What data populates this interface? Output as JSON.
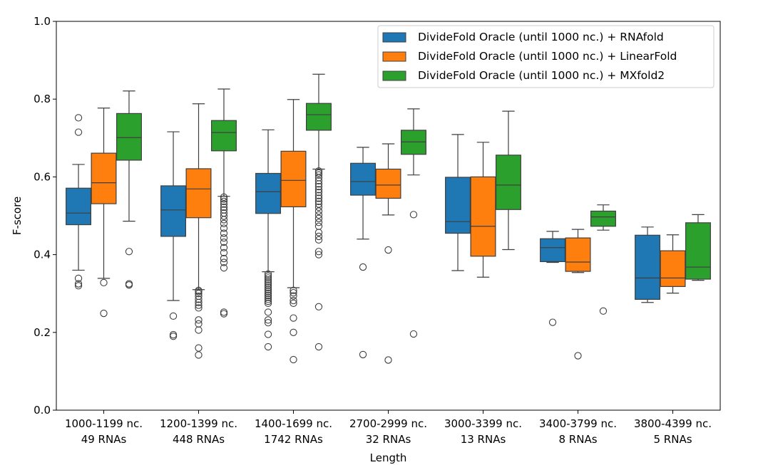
{
  "chart_data": {
    "type": "box",
    "xlabel": "Length",
    "ylabel": "F-score",
    "ylim": [
      0.0,
      1.0
    ],
    "yticks": [
      "0.0",
      "0.2",
      "0.4",
      "0.6",
      "0.8",
      "1.0"
    ],
    "grid": false,
    "legend_position": "top-right",
    "categories": [
      [
        "1000-1199 nc.",
        "49 RNAs"
      ],
      [
        "1200-1399 nc.",
        "448 RNAs"
      ],
      [
        "1400-1699 nc.",
        "1742 RNAs"
      ],
      [
        "2700-2999 nc.",
        "32 RNAs"
      ],
      [
        "3000-3399 nc.",
        "13 RNAs"
      ],
      [
        "3400-3799 nc.",
        "8 RNAs"
      ],
      [
        "3800-4399 nc.",
        "5 RNAs"
      ]
    ],
    "series": [
      {
        "name": "DivideFold Oracle (until 1000 nc.) + RNAfold",
        "color": "#1f77b4",
        "boxes": [
          {
            "whislo": 0.36,
            "q1": 0.477,
            "med": 0.507,
            "q3": 0.571,
            "whishi": 0.632,
            "fliers": [
              0.752,
              0.715,
              0.339,
              0.325,
              0.32
            ]
          },
          {
            "whislo": 0.282,
            "q1": 0.447,
            "med": 0.515,
            "q3": 0.577,
            "whishi": 0.716,
            "fliers": [
              0.242,
              0.194,
              0.19
            ]
          },
          {
            "whislo": 0.356,
            "q1": 0.506,
            "med": 0.562,
            "q3": 0.609,
            "whishi": 0.721,
            "fliers": [
              0.35,
              0.345,
              0.34,
              0.335,
              0.33,
              0.325,
              0.32,
              0.315,
              0.31,
              0.305,
              0.3,
              0.295,
              0.29,
              0.285,
              0.28,
              0.275,
              0.252,
              0.232,
              0.225,
              0.195,
              0.163
            ]
          },
          {
            "whislo": 0.44,
            "q1": 0.553,
            "med": 0.588,
            "q3": 0.635,
            "whishi": 0.676,
            "fliers": [
              0.368,
              0.143
            ]
          },
          {
            "whislo": 0.359,
            "q1": 0.455,
            "med": 0.485,
            "q3": 0.599,
            "whishi": 0.709,
            "fliers": []
          },
          {
            "whislo": 0.38,
            "q1": 0.382,
            "med": 0.418,
            "q3": 0.441,
            "whishi": 0.46,
            "fliers": [
              0.226
            ]
          },
          {
            "whislo": 0.277,
            "q1": 0.285,
            "med": 0.34,
            "q3": 0.45,
            "whishi": 0.471,
            "fliers": []
          }
        ]
      },
      {
        "name": "DivideFold Oracle (until 1000 nc.) + LinearFold",
        "color": "#ff7f0e",
        "boxes": [
          {
            "whislo": 0.339,
            "q1": 0.531,
            "med": 0.585,
            "q3": 0.661,
            "whishi": 0.777,
            "fliers": [
              0.328,
              0.249
            ]
          },
          {
            "whislo": 0.31,
            "q1": 0.495,
            "med": 0.569,
            "q3": 0.621,
            "whishi": 0.788,
            "fliers": [
              0.308,
              0.305,
              0.3,
              0.293,
              0.285,
              0.277,
              0.27,
              0.263,
              0.232,
              0.222,
              0.206,
              0.16,
              0.142
            ]
          },
          {
            "whislo": 0.315,
            "q1": 0.523,
            "med": 0.591,
            "q3": 0.666,
            "whishi": 0.799,
            "fliers": [
              0.308,
              0.302,
              0.294,
              0.282,
              0.275,
              0.237,
              0.2,
              0.13
            ]
          },
          {
            "whislo": 0.502,
            "q1": 0.545,
            "med": 0.579,
            "q3": 0.62,
            "whishi": 0.685,
            "fliers": [
              0.412,
              0.129
            ]
          },
          {
            "whislo": 0.342,
            "q1": 0.396,
            "med": 0.473,
            "q3": 0.6,
            "whishi": 0.689,
            "fliers": []
          },
          {
            "whislo": 0.354,
            "q1": 0.357,
            "med": 0.381,
            "q3": 0.443,
            "whishi": 0.465,
            "fliers": [
              0.14
            ]
          },
          {
            "whislo": 0.301,
            "q1": 0.318,
            "med": 0.34,
            "q3": 0.41,
            "whishi": 0.451,
            "fliers": []
          }
        ]
      },
      {
        "name": "DivideFold Oracle (until 1000 nc.) + MXfold2",
        "color": "#2ca02c",
        "boxes": [
          {
            "whislo": 0.486,
            "q1": 0.643,
            "med": 0.701,
            "q3": 0.763,
            "whishi": 0.821,
            "fliers": [
              0.408,
              0.325,
              0.322
            ]
          },
          {
            "whislo": 0.55,
            "q1": 0.667,
            "med": 0.714,
            "q3": 0.745,
            "whishi": 0.826,
            "fliers": [
              0.548,
              0.543,
              0.537,
              0.53,
              0.522,
              0.515,
              0.507,
              0.499,
              0.49,
              0.48,
              0.468,
              0.455,
              0.443,
              0.432,
              0.418,
              0.405,
              0.39,
              0.38,
              0.366,
              0.252,
              0.248
            ]
          },
          {
            "whislo": 0.62,
            "q1": 0.72,
            "med": 0.76,
            "q3": 0.789,
            "whishi": 0.864,
            "fliers": [
              0.615,
              0.61,
              0.605,
              0.598,
              0.59,
              0.582,
              0.575,
              0.567,
              0.56,
              0.552,
              0.545,
              0.537,
              0.53,
              0.522,
              0.512,
              0.502,
              0.493,
              0.483,
              0.473,
              0.457,
              0.447,
              0.438,
              0.408,
              0.4,
              0.266,
              0.163
            ]
          },
          {
            "whislo": 0.605,
            "q1": 0.658,
            "med": 0.69,
            "q3": 0.72,
            "whishi": 0.775,
            "fliers": [
              0.503,
              0.196
            ]
          },
          {
            "whislo": 0.413,
            "q1": 0.516,
            "med": 0.579,
            "q3": 0.656,
            "whishi": 0.769,
            "fliers": []
          },
          {
            "whislo": 0.463,
            "q1": 0.473,
            "med": 0.497,
            "q3": 0.512,
            "whishi": 0.528,
            "fliers": [
              0.255
            ]
          },
          {
            "whislo": 0.334,
            "q1": 0.337,
            "med": 0.368,
            "q3": 0.482,
            "whishi": 0.503,
            "fliers": []
          }
        ]
      }
    ]
  }
}
